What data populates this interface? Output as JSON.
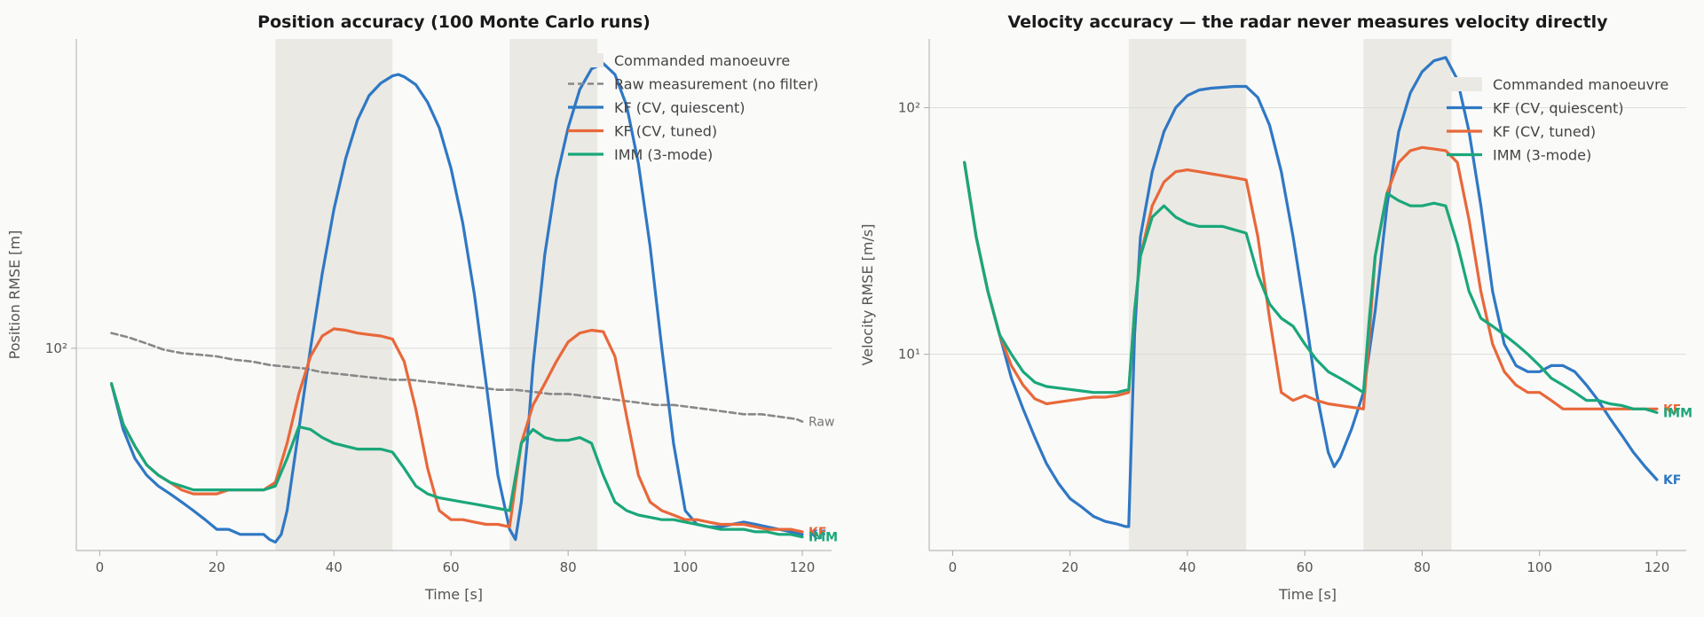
{
  "chart_data": [
    {
      "type": "line",
      "title": "Position accuracy (100 Monte Carlo runs)",
      "xlabel": "Time [s]",
      "ylabel": "Position RMSE [m]",
      "xlim": [
        -4,
        125
      ],
      "ylim": [
        28,
        700
      ],
      "yscale": "log",
      "xticks": [
        0,
        20,
        40,
        60,
        80,
        100,
        120
      ],
      "yticks": [
        {
          "value": 100,
          "label": "10²"
        }
      ],
      "grid": "y-major",
      "legend_position": "top-right",
      "legend": [
        "Commanded manoeuvre",
        "Raw measurement (no filter)",
        "KF (CV, quiescent)",
        "KF (CV, tuned)",
        "IMM (3-mode)"
      ],
      "shaded_regions": [
        {
          "name": "Commanded manoeuvre",
          "x": [
            30,
            50
          ]
        },
        {
          "name": "Commanded manoeuvre",
          "x": [
            70,
            85
          ]
        }
      ],
      "series": [
        {
          "name": "Raw measurement (no filter)",
          "style": "dashed",
          "color": "#888888",
          "end_label": "Raw",
          "x": [
            2,
            5,
            8,
            11,
            14,
            17,
            20,
            23,
            26,
            29,
            32,
            35,
            38,
            41,
            44,
            47,
            50,
            53,
            56,
            59,
            62,
            65,
            68,
            71,
            74,
            77,
            80,
            83,
            86,
            89,
            92,
            95,
            98,
            101,
            104,
            107,
            110,
            113,
            116,
            119,
            120
          ],
          "y": [
            110,
            107,
            103,
            99,
            97,
            96,
            95,
            93,
            92,
            90,
            89,
            88,
            86,
            85,
            84,
            83,
            82,
            82,
            81,
            80,
            79,
            78,
            77,
            77,
            76,
            75,
            75,
            74,
            73,
            72,
            71,
            70,
            70,
            69,
            68,
            67,
            66,
            66,
            65,
            64,
            63
          ]
        },
        {
          "name": "KF (CV, quiescent)",
          "style": "solid",
          "color": "#2f78c4",
          "end_label": "KF",
          "x": [
            2,
            4,
            6,
            8,
            10,
            12,
            14,
            16,
            18,
            20,
            22,
            24,
            26,
            28,
            29,
            30,
            31,
            32,
            34,
            36,
            38,
            40,
            42,
            44,
            46,
            48,
            50,
            51,
            52,
            54,
            56,
            58,
            60,
            62,
            64,
            66,
            68,
            70,
            71,
            72,
            73,
            74,
            76,
            78,
            80,
            82,
            84,
            86,
            88,
            90,
            92,
            94,
            96,
            98,
            100,
            102,
            104,
            106,
            108,
            110,
            112,
            114,
            116,
            118,
            120
          ],
          "y": [
            80,
            60,
            50,
            45,
            42,
            40,
            38,
            36,
            34,
            32,
            32,
            31,
            31,
            31,
            30,
            29.5,
            31,
            36,
            60,
            100,
            160,
            240,
            330,
            420,
            490,
            530,
            555,
            560,
            552,
            525,
            470,
            400,
            310,
            220,
            140,
            80,
            45,
            32,
            30,
            38,
            55,
            90,
            180,
            290,
            400,
            510,
            580,
            600,
            560,
            460,
            320,
            190,
            100,
            55,
            36,
            33,
            32.5,
            32.5,
            33,
            33.5,
            33,
            32.5,
            32,
            31.5,
            31
          ]
        },
        {
          "name": "KF (CV, tuned)",
          "style": "solid",
          "color": "#e8683a",
          "end_label": "KF",
          "x": [
            2,
            4,
            6,
            8,
            10,
            12,
            14,
            16,
            18,
            20,
            22,
            24,
            26,
            28,
            30,
            32,
            34,
            36,
            38,
            40,
            42,
            44,
            46,
            48,
            50,
            52,
            54,
            56,
            58,
            60,
            62,
            64,
            66,
            68,
            70,
            72,
            74,
            76,
            78,
            80,
            82,
            84,
            86,
            88,
            90,
            92,
            94,
            96,
            98,
            100,
            102,
            104,
            106,
            108,
            110,
            112,
            114,
            116,
            118,
            120
          ],
          "y": [
            80,
            62,
            54,
            48,
            45,
            43,
            41,
            40,
            40,
            40,
            41,
            41,
            41,
            41,
            43,
            55,
            75,
            95,
            108,
            113,
            112,
            110,
            109,
            108,
            106,
            92,
            68,
            47,
            36,
            34,
            34,
            33.5,
            33,
            33,
            32.5,
            55,
            70,
            80,
            92,
            104,
            110,
            112,
            111,
            95,
            65,
            45,
            38,
            36,
            35,
            34,
            34,
            33.5,
            33,
            33,
            33,
            32.5,
            32,
            32,
            32,
            31.5
          ]
        },
        {
          "name": "IMM (3-mode)",
          "style": "solid",
          "color": "#1aa77a",
          "end_label": "IMM",
          "x": [
            2,
            4,
            6,
            8,
            10,
            12,
            14,
            16,
            18,
            20,
            22,
            24,
            26,
            28,
            30,
            32,
            34,
            36,
            38,
            40,
            42,
            44,
            46,
            48,
            50,
            52,
            54,
            56,
            58,
            60,
            62,
            64,
            66,
            68,
            70,
            72,
            74,
            76,
            78,
            80,
            82,
            84,
            86,
            88,
            90,
            92,
            94,
            96,
            98,
            100,
            102,
            104,
            106,
            108,
            110,
            112,
            114,
            116,
            118,
            120
          ],
          "y": [
            80,
            62,
            54,
            48,
            45,
            43,
            42,
            41,
            41,
            41,
            41,
            41,
            41,
            41,
            42,
            50,
            61,
            60,
            57,
            55,
            54,
            53,
            53,
            53,
            52,
            47,
            42,
            40,
            39,
            38.5,
            38,
            37.5,
            37,
            36.5,
            36,
            55,
            60,
            57,
            56,
            56,
            57,
            55,
            45,
            38,
            36,
            35,
            34.5,
            34,
            34,
            33.5,
            33,
            32.5,
            32,
            32,
            32,
            31.5,
            31.5,
            31,
            31,
            30.5
          ]
        }
      ]
    },
    {
      "type": "line",
      "title": "Velocity accuracy — the radar never measures velocity directly",
      "xlabel": "Time [s]",
      "ylabel": "Velocity RMSE [m/s]",
      "xlim": [
        -4,
        125
      ],
      "ylim": [
        1.6,
        190
      ],
      "yscale": "log",
      "xticks": [
        0,
        20,
        40,
        60,
        80,
        100,
        120
      ],
      "yticks": [
        {
          "value": 10,
          "label": "10¹"
        },
        {
          "value": 100,
          "label": "10²"
        }
      ],
      "grid": "y-major",
      "legend_position": "top-right",
      "legend": [
        "Commanded manoeuvre",
        "KF (CV, quiescent)",
        "KF (CV, tuned)",
        "IMM (3-mode)"
      ],
      "shaded_regions": [
        {
          "name": "Commanded manoeuvre",
          "x": [
            30,
            50
          ]
        },
        {
          "name": "Commanded manoeuvre",
          "x": [
            70,
            85
          ]
        }
      ],
      "series": [
        {
          "name": "KF (CV, quiescent)",
          "style": "solid",
          "color": "#2f78c4",
          "end_label": "KF",
          "x": [
            2,
            4,
            6,
            8,
            10,
            12,
            14,
            16,
            18,
            20,
            22,
            24,
            26,
            28,
            29.5,
            30,
            31,
            32,
            34,
            36,
            38,
            40,
            42,
            44,
            46,
            48,
            50,
            52,
            54,
            56,
            58,
            60,
            62,
            64,
            65,
            66,
            68,
            70,
            72,
            74,
            76,
            78,
            80,
            82,
            84,
            86,
            88,
            90,
            92,
            94,
            96,
            98,
            100,
            102,
            104,
            106,
            108,
            110,
            112,
            114,
            116,
            118,
            120
          ],
          "y": [
            60,
            30,
            18,
            12,
            8,
            6,
            4.6,
            3.6,
            3,
            2.6,
            2.4,
            2.2,
            2.1,
            2.05,
            2,
            2,
            12,
            30,
            55,
            80,
            100,
            112,
            118,
            120,
            121,
            122,
            122,
            110,
            85,
            55,
            30,
            15,
            7,
            4,
            3.5,
            3.8,
            5,
            7,
            15,
            40,
            80,
            115,
            140,
            155,
            160,
            130,
            80,
            40,
            18,
            11,
            9,
            8.5,
            8.5,
            9,
            9,
            8.5,
            7.5,
            6.5,
            5.5,
            4.7,
            4,
            3.5,
            3.1
          ]
        },
        {
          "name": "KF (CV, tuned)",
          "style": "solid",
          "color": "#e8683a",
          "end_label": "KF",
          "x": [
            2,
            4,
            6,
            8,
            10,
            12,
            14,
            16,
            18,
            20,
            22,
            24,
            26,
            28,
            30,
            31,
            32,
            34,
            36,
            38,
            40,
            42,
            44,
            46,
            48,
            50,
            52,
            54,
            56,
            58,
            60,
            62,
            64,
            66,
            68,
            70,
            71,
            72,
            74,
            76,
            78,
            80,
            82,
            84,
            86,
            88,
            90,
            92,
            94,
            96,
            98,
            100,
            102,
            104,
            106,
            108,
            110,
            112,
            114,
            116,
            118,
            120
          ],
          "y": [
            60,
            30,
            18,
            12,
            9,
            7.5,
            6.6,
            6.3,
            6.4,
            6.5,
            6.6,
            6.7,
            6.7,
            6.8,
            7,
            15,
            25,
            40,
            50,
            55,
            56,
            55,
            54,
            53,
            52,
            51,
            30,
            14,
            7,
            6.5,
            6.8,
            6.5,
            6.3,
            6.2,
            6.1,
            6,
            12,
            25,
            45,
            60,
            67,
            69,
            68,
            67,
            60,
            35,
            18,
            11,
            8.5,
            7.5,
            7,
            7,
            6.5,
            6,
            6,
            6,
            6,
            6,
            6,
            6,
            6,
            6
          ]
        },
        {
          "name": "IMM (3-mode)",
          "style": "solid",
          "color": "#1aa77a",
          "end_label": "IMM",
          "x": [
            2,
            4,
            6,
            8,
            10,
            12,
            14,
            16,
            18,
            20,
            22,
            24,
            26,
            28,
            30,
            31,
            32,
            34,
            36,
            38,
            40,
            42,
            44,
            46,
            48,
            50,
            52,
            54,
            56,
            58,
            60,
            62,
            64,
            66,
            68,
            70,
            71,
            72,
            74,
            76,
            78,
            80,
            82,
            84,
            86,
            88,
            90,
            92,
            94,
            96,
            98,
            100,
            102,
            104,
            106,
            108,
            110,
            112,
            114,
            116,
            118,
            120
          ],
          "y": [
            60,
            30,
            18,
            12,
            10,
            8.5,
            7.7,
            7.4,
            7.3,
            7.2,
            7.1,
            7,
            7,
            7,
            7.2,
            15,
            25,
            36,
            40,
            36,
            34,
            33,
            33,
            33,
            32,
            31,
            21,
            16,
            14,
            13,
            11,
            9.5,
            8.5,
            8,
            7.5,
            7,
            14,
            25,
            45,
            42,
            40,
            40,
            41,
            40,
            28,
            18,
            14,
            13,
            12,
            11,
            10,
            9,
            8,
            7.5,
            7,
            6.5,
            6.5,
            6.3,
            6.2,
            6,
            6,
            5.8
          ]
        }
      ]
    }
  ]
}
